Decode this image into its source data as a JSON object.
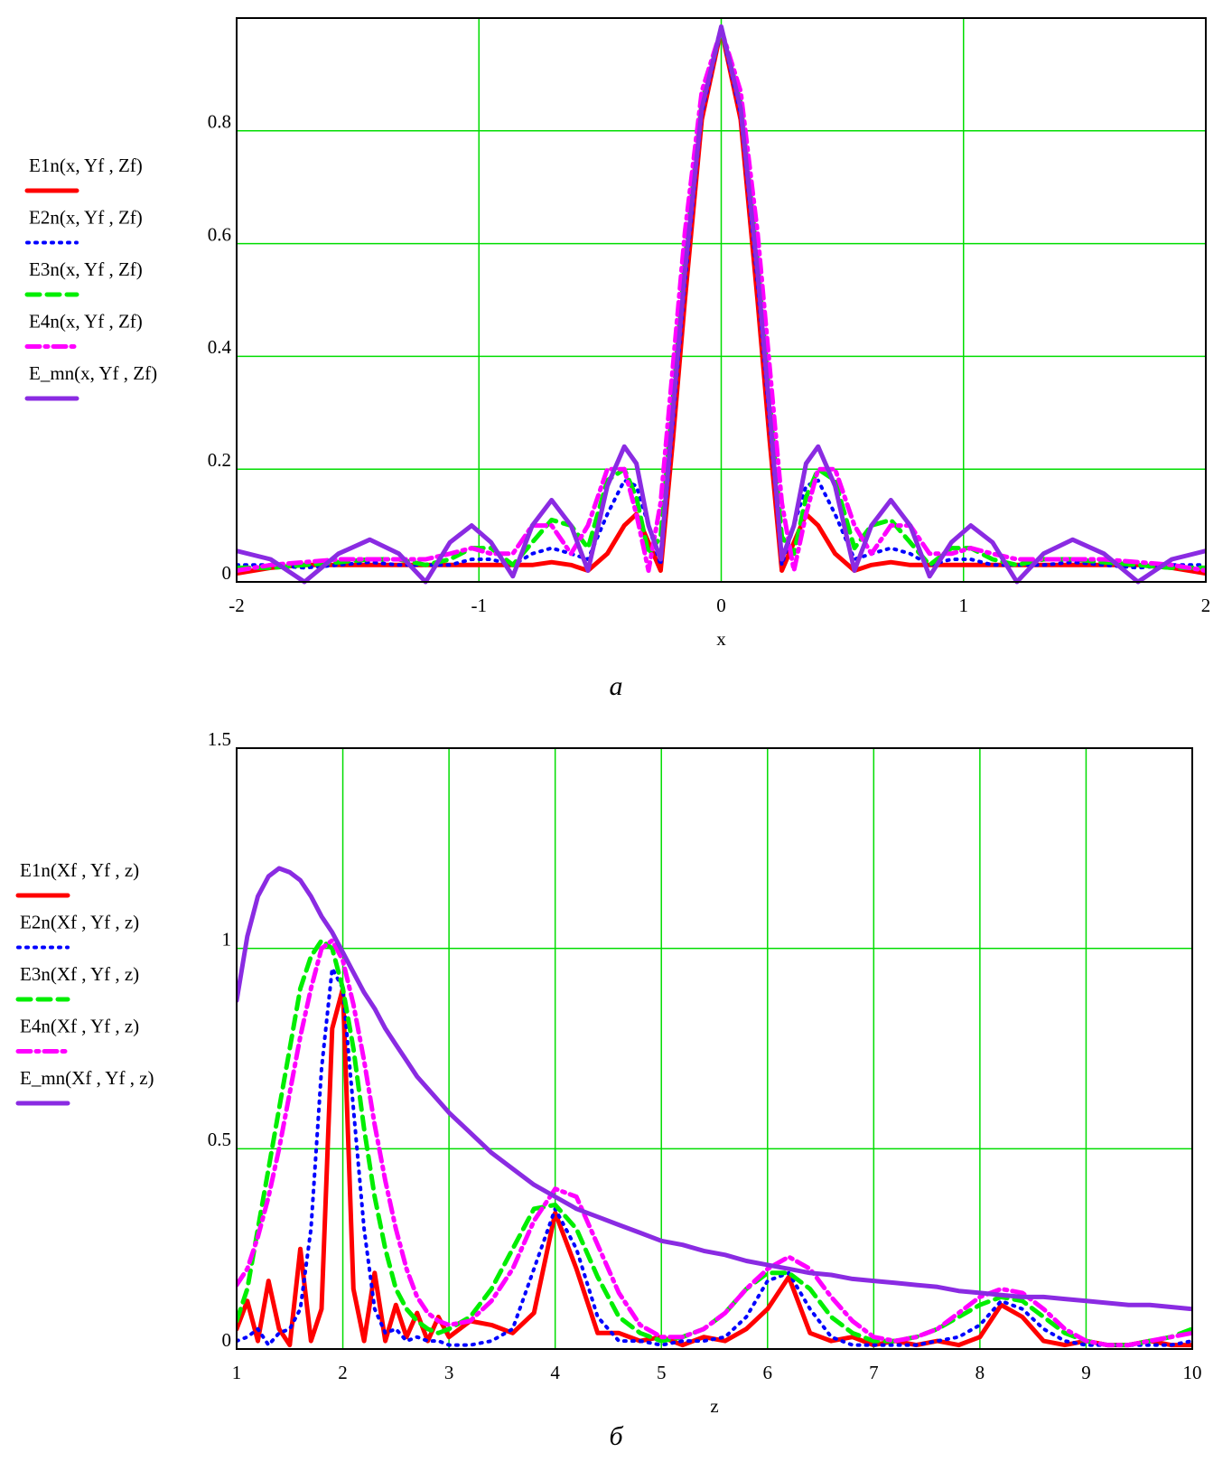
{
  "chart_data": [
    {
      "type": "line",
      "xlabel": "x",
      "caption": "а",
      "xlim": [
        -2,
        2
      ],
      "ylim": [
        0,
        1
      ],
      "xticks": [
        -2,
        -1,
        0,
        1,
        2
      ],
      "yticks": [
        0,
        0.2,
        0.4,
        0.6,
        0.8
      ],
      "grid": true,
      "grid_color": "#00dd00",
      "x": [
        -2,
        -1.86,
        -1.72,
        -1.58,
        -1.45,
        -1.33,
        -1.22,
        -1.12,
        -1.03,
        -0.95,
        -0.86,
        -0.78,
        -0.7,
        -0.62,
        -0.55,
        -0.47,
        -0.4,
        -0.35,
        -0.3,
        -0.25,
        -0.2,
        -0.15,
        -0.08,
        0,
        0.08,
        0.15,
        0.2,
        0.25,
        0.3,
        0.35,
        0.4,
        0.47,
        0.55,
        0.62,
        0.7,
        0.78,
        0.86,
        0.95,
        1.03,
        1.12,
        1.22,
        1.33,
        1.45,
        1.58,
        1.72,
        1.86,
        2
      ],
      "series": [
        {
          "name": "E1n(x, Yf , Zf)",
          "color": "#ff0000",
          "style": "solid",
          "values": [
            0.015,
            0.025,
            0.03,
            0.03,
            0.03,
            0.03,
            0.03,
            0.03,
            0.03,
            0.03,
            0.03,
            0.03,
            0.035,
            0.03,
            0.02,
            0.05,
            0.1,
            0.12,
            0.07,
            0.02,
            0.25,
            0.5,
            0.82,
            0.98,
            0.82,
            0.5,
            0.25,
            0.02,
            0.07,
            0.12,
            0.1,
            0.05,
            0.02,
            0.03,
            0.035,
            0.03,
            0.03,
            0.03,
            0.03,
            0.03,
            0.03,
            0.03,
            0.03,
            0.03,
            0.03,
            0.025,
            0.015
          ]
        },
        {
          "name": "E2n(x, Yf , Zf)",
          "color": "#0000ff",
          "style": "dotted",
          "values": [
            0.03,
            0.03,
            0.025,
            0.03,
            0.035,
            0.03,
            0.03,
            0.03,
            0.04,
            0.04,
            0.03,
            0.05,
            0.06,
            0.05,
            0.04,
            0.12,
            0.18,
            0.17,
            0.1,
            0.03,
            0.28,
            0.53,
            0.83,
            0.98,
            0.83,
            0.53,
            0.28,
            0.03,
            0.1,
            0.17,
            0.18,
            0.12,
            0.04,
            0.05,
            0.06,
            0.05,
            0.03,
            0.04,
            0.04,
            0.03,
            0.03,
            0.03,
            0.035,
            0.03,
            0.025,
            0.03,
            0.03
          ]
        },
        {
          "name": "E3n(x, Yf , Zf)",
          "color": "#00ee00",
          "style": "dashed",
          "values": [
            0.025,
            0.025,
            0.03,
            0.035,
            0.04,
            0.04,
            0.03,
            0.04,
            0.06,
            0.06,
            0.03,
            0.07,
            0.11,
            0.1,
            0.06,
            0.18,
            0.2,
            0.15,
            0.05,
            0.08,
            0.32,
            0.57,
            0.85,
            0.98,
            0.85,
            0.57,
            0.32,
            0.08,
            0.05,
            0.15,
            0.2,
            0.18,
            0.06,
            0.1,
            0.11,
            0.07,
            0.03,
            0.06,
            0.06,
            0.04,
            0.03,
            0.04,
            0.04,
            0.035,
            0.03,
            0.025,
            0.025
          ]
        },
        {
          "name": "E4n(x, Yf , Zf)",
          "color": "#ff00ff",
          "style": "dashdot",
          "values": [
            0.02,
            0.03,
            0.035,
            0.04,
            0.04,
            0.04,
            0.04,
            0.05,
            0.06,
            0.05,
            0.05,
            0.1,
            0.1,
            0.05,
            0.1,
            0.2,
            0.2,
            0.12,
            0.02,
            0.14,
            0.38,
            0.62,
            0.87,
            0.98,
            0.87,
            0.62,
            0.38,
            0.14,
            0.02,
            0.12,
            0.2,
            0.2,
            0.1,
            0.05,
            0.1,
            0.1,
            0.05,
            0.05,
            0.06,
            0.05,
            0.04,
            0.04,
            0.04,
            0.04,
            0.035,
            0.03,
            0.02
          ]
        },
        {
          "name": "E_mn(x, Yf , Zf)",
          "color": "#8a2be2",
          "style": "solid",
          "values": [
            0.055,
            0.04,
            0.0,
            0.05,
            0.075,
            0.05,
            0.0,
            0.07,
            0.1,
            0.07,
            0.01,
            0.1,
            0.145,
            0.1,
            0.02,
            0.17,
            0.24,
            0.21,
            0.1,
            0.04,
            0.3,
            0.55,
            0.84,
            0.985,
            0.84,
            0.55,
            0.3,
            0.04,
            0.1,
            0.21,
            0.24,
            0.17,
            0.02,
            0.1,
            0.145,
            0.1,
            0.01,
            0.07,
            0.1,
            0.07,
            0.0,
            0.05,
            0.075,
            0.05,
            0.0,
            0.04,
            0.055
          ]
        }
      ]
    },
    {
      "type": "line",
      "xlabel": "z",
      "caption": "б",
      "xlim": [
        1,
        10
      ],
      "ylim": [
        0,
        1.5
      ],
      "xticks": [
        1,
        2,
        3,
        4,
        5,
        6,
        7,
        8,
        9,
        10
      ],
      "yticks": [
        0,
        0.5,
        1,
        1.5
      ],
      "grid": true,
      "grid_color": "#00dd00",
      "x": [
        1,
        1.1,
        1.2,
        1.3,
        1.4,
        1.5,
        1.6,
        1.7,
        1.8,
        1.9,
        2,
        2.1,
        2.2,
        2.3,
        2.4,
        2.5,
        2.6,
        2.7,
        2.8,
        2.9,
        3,
        3.2,
        3.4,
        3.6,
        3.8,
        4,
        4.2,
        4.4,
        4.6,
        4.8,
        5,
        5.2,
        5.4,
        5.6,
        5.8,
        6,
        6.2,
        6.4,
        6.6,
        6.8,
        7,
        7.2,
        7.4,
        7.6,
        7.8,
        8,
        8.2,
        8.4,
        8.6,
        8.8,
        9,
        9.2,
        9.4,
        9.6,
        9.8,
        10
      ],
      "series": [
        {
          "name": "E1n(Xf , Yf , z)",
          "color": "#ff0000",
          "style": "solid",
          "values": [
            0.05,
            0.12,
            0.02,
            0.17,
            0.05,
            0.01,
            0.25,
            0.02,
            0.1,
            0.8,
            0.9,
            0.15,
            0.02,
            0.19,
            0.02,
            0.11,
            0.03,
            0.09,
            0.02,
            0.08,
            0.03,
            0.07,
            0.06,
            0.04,
            0.09,
            0.34,
            0.2,
            0.04,
            0.04,
            0.02,
            0.03,
            0.01,
            0.03,
            0.02,
            0.05,
            0.1,
            0.18,
            0.04,
            0.02,
            0.03,
            0.01,
            0.02,
            0.01,
            0.02,
            0.01,
            0.03,
            0.11,
            0.08,
            0.02,
            0.01,
            0.02,
            0.01,
            0.01,
            0.02,
            0.01,
            0.01
          ]
        },
        {
          "name": "E2n(Xf , Yf , z)",
          "color": "#0000ff",
          "style": "dotted",
          "values": [
            0.02,
            0.03,
            0.05,
            0.01,
            0.04,
            0.05,
            0.1,
            0.3,
            0.7,
            0.95,
            0.9,
            0.6,
            0.3,
            0.1,
            0.04,
            0.05,
            0.02,
            0.03,
            0.02,
            0.02,
            0.01,
            0.01,
            0.02,
            0.05,
            0.2,
            0.35,
            0.25,
            0.08,
            0.02,
            0.02,
            0.01,
            0.02,
            0.02,
            0.03,
            0.08,
            0.17,
            0.19,
            0.1,
            0.03,
            0.01,
            0.01,
            0.01,
            0.01,
            0.02,
            0.03,
            0.06,
            0.12,
            0.1,
            0.05,
            0.02,
            0.01,
            0.01,
            0.01,
            0.01,
            0.01,
            0.02
          ]
        },
        {
          "name": "E3n(Xf , Yf , z)",
          "color": "#00ee00",
          "style": "dashed",
          "values": [
            0.07,
            0.15,
            0.3,
            0.45,
            0.6,
            0.75,
            0.9,
            0.98,
            1.02,
            1.0,
            0.9,
            0.75,
            0.55,
            0.38,
            0.25,
            0.15,
            0.1,
            0.07,
            0.05,
            0.04,
            0.05,
            0.08,
            0.15,
            0.25,
            0.35,
            0.36,
            0.3,
            0.18,
            0.08,
            0.04,
            0.02,
            0.03,
            0.05,
            0.09,
            0.15,
            0.19,
            0.19,
            0.15,
            0.08,
            0.04,
            0.02,
            0.02,
            0.03,
            0.05,
            0.08,
            0.11,
            0.13,
            0.12,
            0.08,
            0.04,
            0.02,
            0.01,
            0.01,
            0.02,
            0.03,
            0.05
          ]
        },
        {
          "name": "E4n(Xf , Yf , z)",
          "color": "#ff00ff",
          "style": "dashdot",
          "values": [
            0.16,
            0.2,
            0.28,
            0.38,
            0.5,
            0.64,
            0.78,
            0.9,
            1.0,
            1.02,
            0.97,
            0.86,
            0.72,
            0.56,
            0.42,
            0.3,
            0.2,
            0.13,
            0.09,
            0.07,
            0.06,
            0.07,
            0.12,
            0.2,
            0.32,
            0.4,
            0.38,
            0.26,
            0.14,
            0.06,
            0.03,
            0.03,
            0.05,
            0.09,
            0.15,
            0.2,
            0.23,
            0.2,
            0.13,
            0.07,
            0.03,
            0.02,
            0.03,
            0.05,
            0.09,
            0.13,
            0.15,
            0.14,
            0.1,
            0.05,
            0.02,
            0.01,
            0.01,
            0.02,
            0.03,
            0.04
          ]
        },
        {
          "name": "E_mn(Xf , Yf , z)",
          "color": "#8a2be2",
          "style": "solid",
          "values": [
            0.87,
            1.03,
            1.13,
            1.18,
            1.2,
            1.19,
            1.17,
            1.13,
            1.08,
            1.04,
            0.99,
            0.94,
            0.89,
            0.85,
            0.8,
            0.76,
            0.72,
            0.68,
            0.65,
            0.62,
            0.59,
            0.54,
            0.49,
            0.45,
            0.41,
            0.38,
            0.35,
            0.33,
            0.31,
            0.29,
            0.27,
            0.26,
            0.245,
            0.235,
            0.22,
            0.21,
            0.2,
            0.19,
            0.185,
            0.175,
            0.17,
            0.165,
            0.16,
            0.155,
            0.145,
            0.14,
            0.135,
            0.13,
            0.13,
            0.125,
            0.12,
            0.115,
            0.11,
            0.11,
            0.105,
            0.1
          ]
        }
      ]
    }
  ]
}
